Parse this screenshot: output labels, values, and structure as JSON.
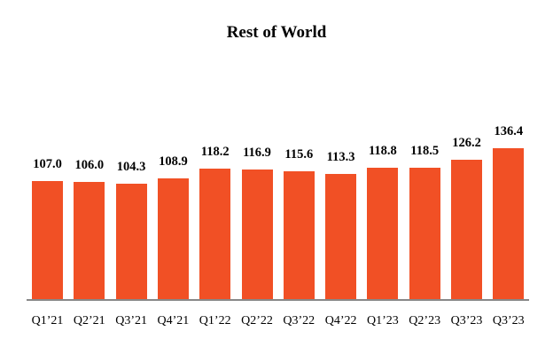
{
  "title": "Rest of World",
  "colors": {
    "bar": "#f15025",
    "axis": "#888888",
    "text": "#000000"
  },
  "chart_data": {
    "type": "bar",
    "title": "Rest of World",
    "xlabel": "",
    "ylabel": "",
    "categories": [
      "Q1’21",
      "Q2’21",
      "Q3’21",
      "Q4’21",
      "Q1’22",
      "Q2’22",
      "Q3’22",
      "Q4’22",
      "Q1’23",
      "Q2’23",
      "Q3’23",
      "Q3’23"
    ],
    "values": [
      107.0,
      106.0,
      104.3,
      108.9,
      118.2,
      116.9,
      115.6,
      113.3,
      118.8,
      118.5,
      126.2,
      136.4
    ],
    "value_labels": [
      "107.0",
      "106.0",
      "104.3",
      "108.9",
      "118.2",
      "116.9",
      "115.6",
      "113.3",
      "118.8",
      "118.5",
      "126.2",
      "136.4"
    ],
    "ylim": [
      0,
      150
    ],
    "grid": false,
    "legend": null,
    "data_labels": true
  }
}
